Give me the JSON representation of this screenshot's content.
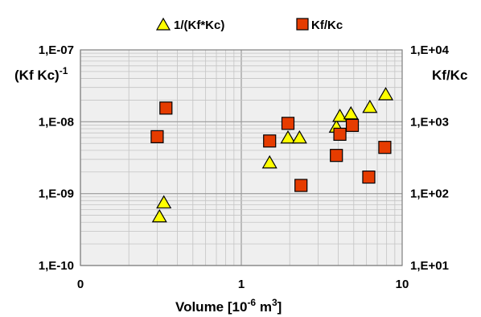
{
  "chart_data": {
    "type": "scatter",
    "xscale": "log",
    "xlim": [
      0.1,
      10
    ],
    "x_tick_labels": [
      "0",
      "1",
      "10"
    ],
    "xlabel": {
      "main": "Volume [10",
      "sup": "-6",
      "mid": " m",
      "sup2": "3",
      "end": "]"
    },
    "left_axis": {
      "scale": "log",
      "ylim": [
        1e-10,
        1e-07
      ],
      "label": {
        "main": "(Kf Kc)",
        "sup": "-1"
      },
      "tick_labels": [
        "1,E-10",
        "1,E-09",
        "1,E-08",
        "1,E-07"
      ]
    },
    "right_axis": {
      "scale": "log",
      "ylim": [
        10,
        10000
      ],
      "label": "Kf/Kc",
      "tick_labels": [
        "1,E+01",
        "1,E+02",
        "1,E+03",
        "1,E+04"
      ]
    },
    "grid": true,
    "legend_position": "top",
    "series": [
      {
        "name": "1/(Kf*Kc)",
        "marker": "triangle",
        "color": "#ffff00",
        "axis": "left",
        "points": [
          {
            "x": 0.31,
            "y": 4.8e-10
          },
          {
            "x": 0.33,
            "y": 7.5e-10
          },
          {
            "x": 1.5,
            "y": 2.7e-09
          },
          {
            "x": 1.95,
            "y": 6e-09
          },
          {
            "x": 2.3,
            "y": 6e-09
          },
          {
            "x": 3.9,
            "y": 8.5e-09
          },
          {
            "x": 4.1,
            "y": 1.2e-08
          },
          {
            "x": 4.8,
            "y": 1.3e-08
          },
          {
            "x": 6.3,
            "y": 1.6e-08
          },
          {
            "x": 7.9,
            "y": 2.4e-08
          }
        ]
      },
      {
        "name": "Kf/Kc",
        "marker": "square",
        "color": "#e63c00",
        "axis": "right",
        "points": [
          {
            "x": 0.3,
            "y": 620
          },
          {
            "x": 0.34,
            "y": 1550
          },
          {
            "x": 1.5,
            "y": 540
          },
          {
            "x": 1.95,
            "y": 950
          },
          {
            "x": 2.35,
            "y": 130
          },
          {
            "x": 3.9,
            "y": 340
          },
          {
            "x": 4.1,
            "y": 670
          },
          {
            "x": 4.9,
            "y": 890
          },
          {
            "x": 6.2,
            "y": 170
          },
          {
            "x": 7.8,
            "y": 440
          }
        ]
      }
    ]
  }
}
